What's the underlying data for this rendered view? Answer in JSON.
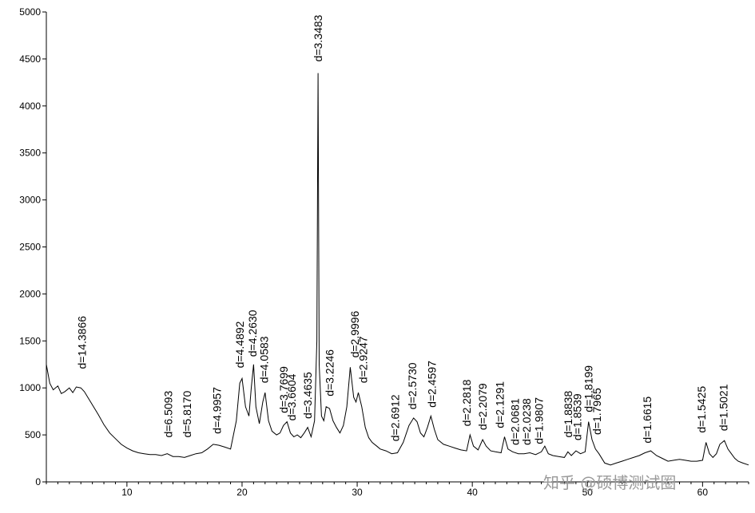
{
  "chart_data": {
    "type": "line",
    "title": "",
    "xlabel": "",
    "ylabel": "",
    "xlim": [
      3,
      64
    ],
    "ylim": [
      0,
      5000
    ],
    "grid": false,
    "x_ticks": [
      10,
      20,
      30,
      40,
      50,
      60
    ],
    "y_ticks": [
      0,
      500,
      1000,
      1500,
      2000,
      2500,
      3000,
      3500,
      4000,
      4500,
      5000
    ],
    "series": [
      {
        "x": [
          3.0,
          3.3,
          3.6,
          4.0,
          4.3,
          4.6,
          5.0,
          5.3,
          5.6,
          6.0,
          6.3,
          6.6,
          7.0,
          7.5,
          8.0,
          8.5,
          9.0,
          9.5,
          10.0,
          10.5,
          11.0,
          11.5,
          12.0,
          12.5,
          13.0,
          13.5,
          14.0,
          14.5,
          15.0,
          15.5,
          16.0,
          16.5,
          17.0,
          17.5,
          18.0,
          18.5,
          19.0,
          19.5,
          19.8,
          20.0,
          20.3,
          20.6,
          20.8,
          21.0,
          21.2,
          21.5,
          21.8,
          22.0,
          22.3,
          22.6,
          23.0,
          23.3,
          23.6,
          23.9,
          24.2,
          24.5,
          24.8,
          25.1,
          25.4,
          25.7,
          26.0,
          26.3,
          26.5,
          26.6,
          26.7,
          26.9,
          27.1,
          27.3,
          27.6,
          27.9,
          28.2,
          28.5,
          28.8,
          29.1,
          29.4,
          29.7,
          29.9,
          30.1,
          30.4,
          30.7,
          31.0,
          31.3,
          31.7,
          32.0,
          32.5,
          33.0,
          33.5,
          34.0,
          34.5,
          34.9,
          35.2,
          35.5,
          35.8,
          36.1,
          36.4,
          36.7,
          37.0,
          37.5,
          38.0,
          38.5,
          39.0,
          39.5,
          39.8,
          40.1,
          40.5,
          40.9,
          41.2,
          41.6,
          42.0,
          42.5,
          42.8,
          43.1,
          43.5,
          44.0,
          44.5,
          45.0,
          45.5,
          46.0,
          46.3,
          46.6,
          47.0,
          47.5,
          48.0,
          48.3,
          48.6,
          49.0,
          49.4,
          49.8,
          50.1,
          50.4,
          50.7,
          51.0,
          51.5,
          52.0,
          52.5,
          53.0,
          53.5,
          54.0,
          54.5,
          55.0,
          55.5,
          56.0,
          56.5,
          57.0,
          57.5,
          58.0,
          58.5,
          59.0,
          59.5,
          60.0,
          60.3,
          60.6,
          60.9,
          61.2,
          61.5,
          61.9,
          62.2,
          62.5,
          62.8,
          63.1,
          63.5,
          64.0
        ],
        "y": [
          1250,
          1050,
          980,
          1020,
          940,
          960,
          1000,
          950,
          1010,
          1000,
          960,
          900,
          820,
          720,
          610,
          520,
          460,
          400,
          360,
          330,
          310,
          300,
          290,
          290,
          280,
          300,
          270,
          270,
          260,
          280,
          300,
          310,
          350,
          400,
          390,
          370,
          350,
          650,
          1050,
          1100,
          800,
          700,
          1000,
          1250,
          800,
          620,
          850,
          950,
          650,
          540,
          500,
          520,
          600,
          640,
          520,
          480,
          500,
          470,
          520,
          580,
          480,
          650,
          1500,
          4350,
          1250,
          700,
          650,
          800,
          780,
          650,
          580,
          520,
          600,
          800,
          1220,
          900,
          850,
          950,
          800,
          580,
          470,
          420,
          380,
          350,
          330,
          300,
          310,
          420,
          600,
          680,
          640,
          520,
          480,
          580,
          700,
          560,
          450,
          400,
          380,
          360,
          340,
          330,
          500,
          380,
          340,
          450,
          380,
          330,
          320,
          310,
          480,
          350,
          320,
          300,
          300,
          310,
          290,
          320,
          380,
          300,
          280,
          270,
          260,
          320,
          280,
          330,
          300,
          320,
          640,
          450,
          350,
          300,
          200,
          180,
          200,
          220,
          240,
          260,
          280,
          310,
          330,
          280,
          250,
          220,
          230,
          240,
          230,
          220,
          220,
          230,
          420,
          300,
          260,
          300,
          400,
          440,
          350,
          300,
          250,
          220,
          200,
          180
        ]
      }
    ],
    "annotations": [
      {
        "text": "d=14.3866",
        "x": 6.1,
        "y": 1150
      },
      {
        "text": "d=6.5093",
        "x": 13.6,
        "y": 420
      },
      {
        "text": "d=5.8170",
        "x": 15.2,
        "y": 420
      },
      {
        "text": "d=4.9957",
        "x": 17.8,
        "y": 460
      },
      {
        "text": "d=4.4892",
        "x": 19.8,
        "y": 1160
      },
      {
        "text": "d=4.2630",
        "x": 20.9,
        "y": 1280
      },
      {
        "text": "d=4.0583",
        "x": 21.9,
        "y": 1000
      },
      {
        "text": "d=3.7699",
        "x": 23.6,
        "y": 680
      },
      {
        "text": "d=3.6604",
        "x": 24.3,
        "y": 600
      },
      {
        "text": "d=3.4635",
        "x": 25.7,
        "y": 620
      },
      {
        "text": "d=3.3483",
        "x": 26.6,
        "y": 4420
      },
      {
        "text": "d=3.2246",
        "x": 27.6,
        "y": 860
      },
      {
        "text": "d=2.9996",
        "x": 29.8,
        "y": 1270
      },
      {
        "text": "d=2.9247",
        "x": 30.5,
        "y": 1000
      },
      {
        "text": "d=2.6912",
        "x": 33.3,
        "y": 380
      },
      {
        "text": "d=2.5730",
        "x": 34.8,
        "y": 720
      },
      {
        "text": "d=2.4597",
        "x": 36.5,
        "y": 740
      },
      {
        "text": "d=2.2818",
        "x": 39.5,
        "y": 540
      },
      {
        "text": "d=2.2079",
        "x": 40.9,
        "y": 500
      },
      {
        "text": "d=2.1291",
        "x": 42.4,
        "y": 520
      },
      {
        "text": "d=2.0681",
        "x": 43.7,
        "y": 340
      },
      {
        "text": "d=2.0238",
        "x": 44.7,
        "y": 340
      },
      {
        "text": "d=1.9807",
        "x": 45.8,
        "y": 350
      },
      {
        "text": "d=1.8838",
        "x": 48.3,
        "y": 420
      },
      {
        "text": "d=1.8539",
        "x": 49.1,
        "y": 390
      },
      {
        "text": "d=1.8199",
        "x": 50.1,
        "y": 690
      },
      {
        "text": "d=1.7965",
        "x": 50.8,
        "y": 450
      },
      {
        "text": "d=1.6615",
        "x": 55.2,
        "y": 360
      },
      {
        "text": "d=1.5425",
        "x": 59.9,
        "y": 470
      },
      {
        "text": "d=1.5021",
        "x": 61.8,
        "y": 490
      }
    ]
  },
  "watermark": "知乎 @硕博测试圈"
}
